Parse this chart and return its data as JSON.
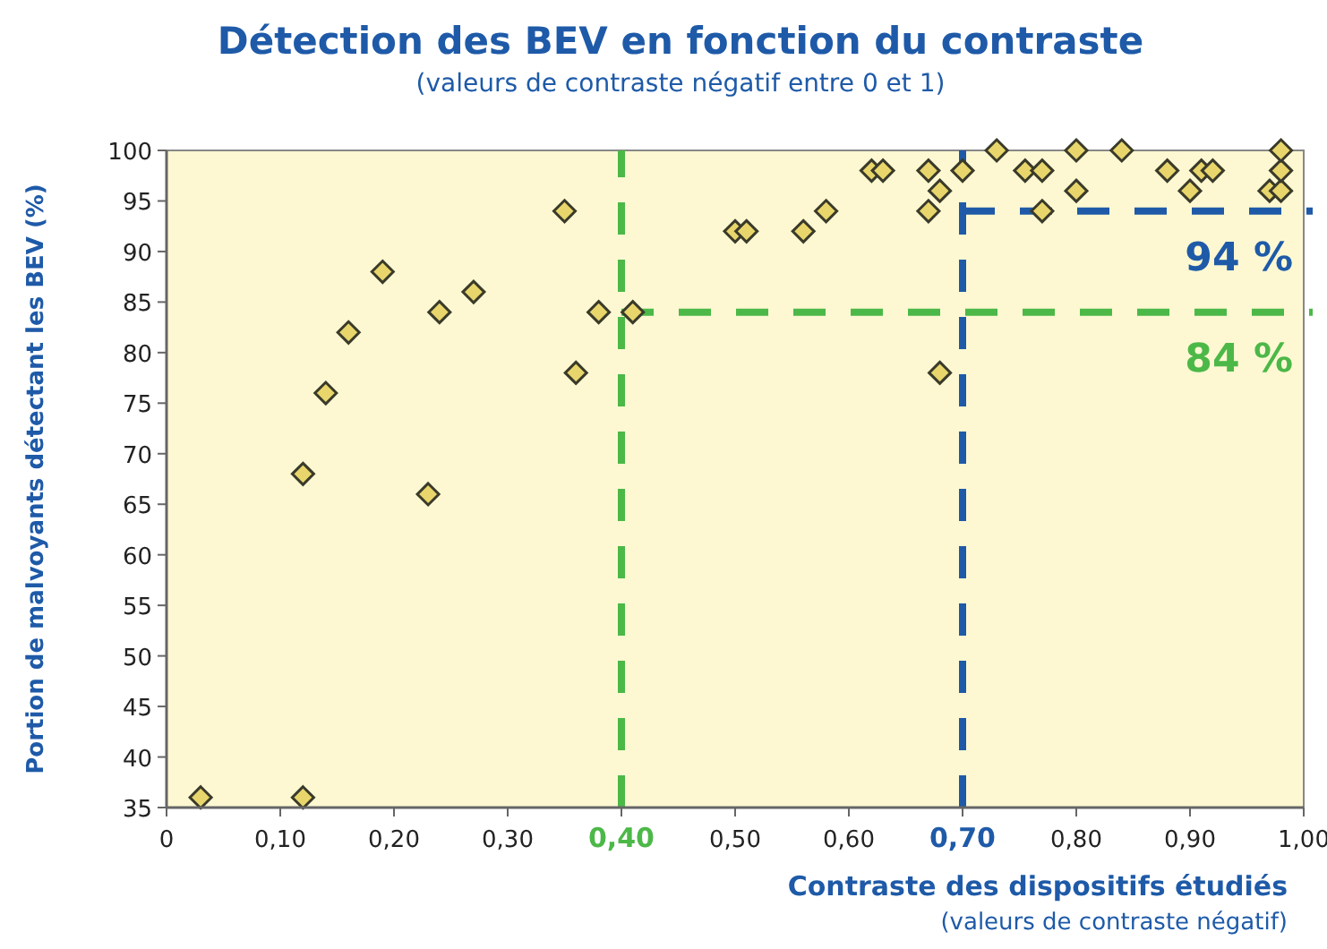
{
  "chart_data": {
    "type": "scatter",
    "title": "Détection des BEV en fonction du contraste",
    "subtitle": "(valeurs de contraste négatif entre 0 et 1)",
    "xlabel": "Contraste des dispositifs étudiés",
    "annotations": [
      "(valeurs de contraste négatif)"
    ],
    "ylabel": "Portion de malvoyants détectant les BEV (%)",
    "marker": "diamond",
    "grid": false,
    "xlim": [
      0,
      1
    ],
    "ylim": [
      35,
      100
    ],
    "xticks": [
      {
        "value": 0,
        "label": "0"
      },
      {
        "value": 0.1,
        "label": "0,10"
      },
      {
        "value": 0.2,
        "label": "0,20"
      },
      {
        "value": 0.3,
        "label": "0,30"
      },
      {
        "value": 0.4,
        "label": "0,40"
      },
      {
        "value": 0.5,
        "label": "0,50"
      },
      {
        "value": 0.6,
        "label": "0,60"
      },
      {
        "value": 0.7,
        "label": "0,70"
      },
      {
        "value": 0.8,
        "label": "0,80"
      },
      {
        "value": 0.9,
        "label": "0,90"
      },
      {
        "value": 1,
        "label": "1,00"
      }
    ],
    "yticks": [
      35,
      40,
      45,
      50,
      55,
      60,
      65,
      70,
      75,
      80,
      85,
      90,
      95,
      100
    ],
    "series": [
      {
        "color": "#e8d66c",
        "x": [
          0.03,
          0.12,
          0.12,
          0.14,
          0.16,
          0.19,
          0.23,
          0.24,
          0.27,
          0.35,
          0.36,
          0.38,
          0.41,
          0.5,
          0.51,
          0.56,
          0.58,
          0.62,
          0.63,
          0.67,
          0.67,
          0.68,
          0.68,
          0.7,
          0.73,
          0.755,
          0.77,
          0.77,
          0.8,
          0.8,
          0.84,
          0.88,
          0.9,
          0.91,
          0.92,
          0.97,
          0.98,
          0.98,
          0.98
        ],
        "values": [
          36,
          36,
          68,
          76,
          82,
          88,
          66,
          84,
          86,
          94,
          78,
          84,
          84,
          92,
          92,
          92,
          94,
          98,
          98,
          98,
          94,
          96,
          78,
          98,
          100,
          98,
          98,
          94,
          100,
          96,
          100,
          98,
          96,
          98,
          98,
          96,
          96,
          98,
          100
        ]
      }
    ],
    "ref_lines": [
      {
        "axis": "x",
        "value": 0.4,
        "color": "#4cb848",
        "line_style": "dashed"
      },
      {
        "axis": "y",
        "value": 84,
        "label": "84 %",
        "color": "#4cb848",
        "line_style": "dashed"
      },
      {
        "axis": "x",
        "value": 0.7,
        "color": "#1e5aa8",
        "line_style": "dashed"
      },
      {
        "axis": "y",
        "value": 94,
        "label": "94 %",
        "color": "#1e5aa8",
        "line_style": "dashed"
      }
    ]
  }
}
